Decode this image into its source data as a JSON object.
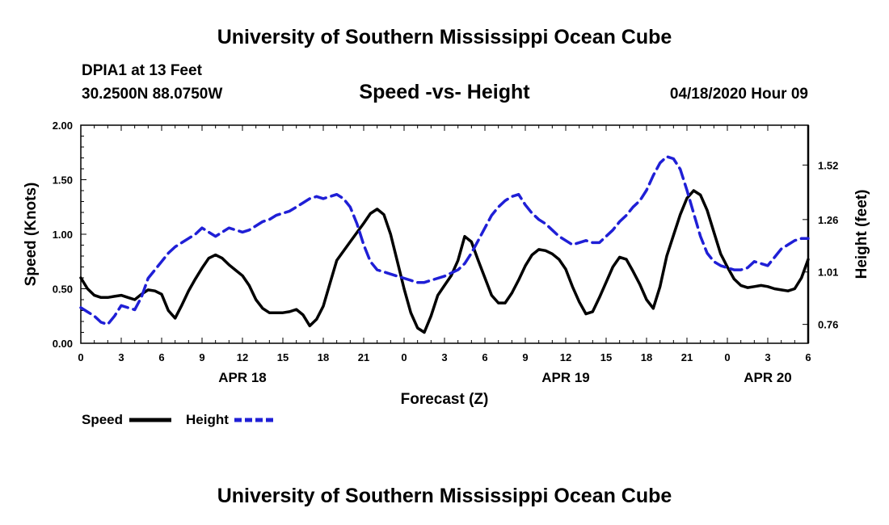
{
  "header": {
    "title": "University of Southern Mississippi Ocean Cube",
    "station": "DPIA1 at 13 Feet",
    "location": "30.2500N 88.0750W",
    "timestamp": "04/18/2020 Hour 09"
  },
  "footer": {
    "title": "University of Southern Mississippi Ocean Cube"
  },
  "chart_data": {
    "type": "line",
    "title": "Speed -vs- Height",
    "xlabel": "Forecast (Z)",
    "ylabel_left": "Speed (Knots)",
    "ylabel_right": "Height (feet)",
    "grid": false,
    "legend_position": "bottom-left",
    "x_range_hours": [
      0,
      54
    ],
    "ylim_left": [
      0,
      2.0
    ],
    "ylim_right": [
      0.67,
      1.71
    ],
    "x_ticks": [
      {
        "h": 0,
        "label": "0"
      },
      {
        "h": 3,
        "label": "3"
      },
      {
        "h": 6,
        "label": "6"
      },
      {
        "h": 9,
        "label": "9"
      },
      {
        "h": 12,
        "label": "12"
      },
      {
        "h": 15,
        "label": "15"
      },
      {
        "h": 18,
        "label": "18"
      },
      {
        "h": 21,
        "label": "21"
      },
      {
        "h": 24,
        "label": "0"
      },
      {
        "h": 27,
        "label": "3"
      },
      {
        "h": 30,
        "label": "6"
      },
      {
        "h": 33,
        "label": "9"
      },
      {
        "h": 36,
        "label": "12"
      },
      {
        "h": 39,
        "label": "15"
      },
      {
        "h": 42,
        "label": "18"
      },
      {
        "h": 45,
        "label": "21"
      },
      {
        "h": 48,
        "label": "0"
      },
      {
        "h": 51,
        "label": "3"
      },
      {
        "h": 54,
        "label": "6"
      }
    ],
    "date_labels": [
      {
        "h": 12,
        "label": "APR 18"
      },
      {
        "h": 36,
        "label": "APR 19"
      },
      {
        "h": 51,
        "label": "APR 20"
      }
    ],
    "y_ticks_left": [
      {
        "v": 0,
        "label": "0.00"
      },
      {
        "v": 0.5,
        "label": "0.50"
      },
      {
        "v": 1.0,
        "label": "1.00"
      },
      {
        "v": 1.5,
        "label": "1.50"
      },
      {
        "v": 2.0,
        "label": "2.00"
      }
    ],
    "y_ticks_right": [
      {
        "v": 0.76,
        "label": "0.76"
      },
      {
        "v": 1.01,
        "label": "1.01"
      },
      {
        "v": 1.26,
        "label": "1.26"
      },
      {
        "v": 1.52,
        "label": "1.52"
      }
    ],
    "series": [
      {
        "name": "Speed",
        "axis": "left",
        "color": "#000000",
        "dashed": false,
        "points": [
          [
            0,
            0.6
          ],
          [
            0.5,
            0.5
          ],
          [
            1,
            0.44
          ],
          [
            1.5,
            0.42
          ],
          [
            2,
            0.42
          ],
          [
            2.5,
            0.43
          ],
          [
            3,
            0.44
          ],
          [
            3.5,
            0.42
          ],
          [
            4,
            0.4
          ],
          [
            4.5,
            0.45
          ],
          [
            5,
            0.49
          ],
          [
            5.5,
            0.48
          ],
          [
            6,
            0.45
          ],
          [
            6.5,
            0.3
          ],
          [
            7,
            0.23
          ],
          [
            7.5,
            0.35
          ],
          [
            8,
            0.48
          ],
          [
            8.5,
            0.59
          ],
          [
            9,
            0.69
          ],
          [
            9.5,
            0.78
          ],
          [
            10,
            0.81
          ],
          [
            10.5,
            0.78
          ],
          [
            11,
            0.72
          ],
          [
            11.5,
            0.67
          ],
          [
            12,
            0.62
          ],
          [
            12.5,
            0.53
          ],
          [
            13,
            0.4
          ],
          [
            13.5,
            0.32
          ],
          [
            14,
            0.28
          ],
          [
            15,
            0.28
          ],
          [
            15.5,
            0.29
          ],
          [
            16,
            0.31
          ],
          [
            16.5,
            0.26
          ],
          [
            17,
            0.16
          ],
          [
            17.5,
            0.22
          ],
          [
            18,
            0.34
          ],
          [
            18.5,
            0.55
          ],
          [
            19,
            0.76
          ],
          [
            20,
            0.93
          ],
          [
            21,
            1.1
          ],
          [
            21.5,
            1.19
          ],
          [
            22,
            1.23
          ],
          [
            22.5,
            1.18
          ],
          [
            23,
            1.0
          ],
          [
            23.5,
            0.75
          ],
          [
            24,
            0.5
          ],
          [
            24.5,
            0.28
          ],
          [
            25,
            0.14
          ],
          [
            25.5,
            0.1
          ],
          [
            26,
            0.25
          ],
          [
            26.5,
            0.44
          ],
          [
            27,
            0.53
          ],
          [
            27.5,
            0.62
          ],
          [
            28,
            0.76
          ],
          [
            28.5,
            0.98
          ],
          [
            29,
            0.93
          ],
          [
            29.5,
            0.76
          ],
          [
            30,
            0.6
          ],
          [
            30.5,
            0.44
          ],
          [
            31,
            0.37
          ],
          [
            31.5,
            0.37
          ],
          [
            32,
            0.46
          ],
          [
            32.5,
            0.58
          ],
          [
            33,
            0.71
          ],
          [
            33.5,
            0.81
          ],
          [
            34,
            0.86
          ],
          [
            34.5,
            0.85
          ],
          [
            35,
            0.82
          ],
          [
            35.5,
            0.77
          ],
          [
            36,
            0.68
          ],
          [
            36.5,
            0.52
          ],
          [
            37,
            0.38
          ],
          [
            37.5,
            0.27
          ],
          [
            38,
            0.29
          ],
          [
            38.5,
            0.42
          ],
          [
            39,
            0.56
          ],
          [
            39.5,
            0.7
          ],
          [
            40,
            0.79
          ],
          [
            40.5,
            0.77
          ],
          [
            41,
            0.66
          ],
          [
            41.5,
            0.54
          ],
          [
            42,
            0.4
          ],
          [
            42.5,
            0.32
          ],
          [
            43,
            0.52
          ],
          [
            43.5,
            0.8
          ],
          [
            44,
            0.99
          ],
          [
            44.5,
            1.18
          ],
          [
            45,
            1.33
          ],
          [
            45.5,
            1.4
          ],
          [
            46,
            1.36
          ],
          [
            46.5,
            1.22
          ],
          [
            47,
            1.02
          ],
          [
            47.5,
            0.82
          ],
          [
            48,
            0.7
          ],
          [
            48.5,
            0.59
          ],
          [
            49,
            0.53
          ],
          [
            49.5,
            0.51
          ],
          [
            50,
            0.52
          ],
          [
            50.5,
            0.53
          ],
          [
            51,
            0.52
          ],
          [
            51.5,
            0.5
          ],
          [
            52,
            0.49
          ],
          [
            52.5,
            0.48
          ],
          [
            53,
            0.5
          ],
          [
            53.5,
            0.6
          ],
          [
            54,
            0.77
          ]
        ]
      },
      {
        "name": "Height",
        "axis": "right",
        "color": "#1f1fd6",
        "dashed": true,
        "points": [
          [
            0,
            0.84
          ],
          [
            0.5,
            0.82
          ],
          [
            1,
            0.8
          ],
          [
            1.5,
            0.77
          ],
          [
            2,
            0.76
          ],
          [
            2.5,
            0.8
          ],
          [
            3,
            0.85
          ],
          [
            3.5,
            0.84
          ],
          [
            4,
            0.83
          ],
          [
            4.5,
            0.89
          ],
          [
            5,
            0.98
          ],
          [
            5.5,
            1.02
          ],
          [
            6,
            1.06
          ],
          [
            6.5,
            1.1
          ],
          [
            7,
            1.13
          ],
          [
            7.5,
            1.15
          ],
          [
            8,
            1.17
          ],
          [
            8.5,
            1.19
          ],
          [
            9,
            1.22
          ],
          [
            9.5,
            1.2
          ],
          [
            10,
            1.18
          ],
          [
            10.5,
            1.2
          ],
          [
            11,
            1.22
          ],
          [
            11.5,
            1.21
          ],
          [
            12,
            1.2
          ],
          [
            12.5,
            1.21
          ],
          [
            13,
            1.23
          ],
          [
            13.5,
            1.25
          ],
          [
            14,
            1.26
          ],
          [
            14.5,
            1.28
          ],
          [
            15,
            1.29
          ],
          [
            15.5,
            1.3
          ],
          [
            16,
            1.32
          ],
          [
            16.5,
            1.34
          ],
          [
            17,
            1.36
          ],
          [
            17.5,
            1.37
          ],
          [
            18,
            1.36
          ],
          [
            18.5,
            1.37
          ],
          [
            19,
            1.38
          ],
          [
            19.5,
            1.36
          ],
          [
            20,
            1.32
          ],
          [
            20.5,
            1.24
          ],
          [
            21,
            1.14
          ],
          [
            21.5,
            1.06
          ],
          [
            22,
            1.02
          ],
          [
            23,
            1.0
          ],
          [
            24,
            0.98
          ],
          [
            25,
            0.96
          ],
          [
            25.5,
            0.96
          ],
          [
            26,
            0.97
          ],
          [
            27,
            0.99
          ],
          [
            28,
            1.02
          ],
          [
            28.5,
            1.05
          ],
          [
            29,
            1.1
          ],
          [
            29.5,
            1.16
          ],
          [
            30,
            1.22
          ],
          [
            30.5,
            1.28
          ],
          [
            31,
            1.32
          ],
          [
            31.5,
            1.35
          ],
          [
            32,
            1.37
          ],
          [
            32.5,
            1.38
          ],
          [
            33,
            1.33
          ],
          [
            33.5,
            1.29
          ],
          [
            34,
            1.26
          ],
          [
            34.5,
            1.24
          ],
          [
            35,
            1.21
          ],
          [
            35.5,
            1.18
          ],
          [
            36,
            1.16
          ],
          [
            36.5,
            1.14
          ],
          [
            37,
            1.15
          ],
          [
            37.5,
            1.16
          ],
          [
            38,
            1.15
          ],
          [
            38.5,
            1.15
          ],
          [
            39,
            1.18
          ],
          [
            39.5,
            1.21
          ],
          [
            40,
            1.25
          ],
          [
            40.5,
            1.28
          ],
          [
            41,
            1.32
          ],
          [
            41.5,
            1.35
          ],
          [
            42,
            1.4
          ],
          [
            42.5,
            1.47
          ],
          [
            43,
            1.53
          ],
          [
            43.5,
            1.56
          ],
          [
            44,
            1.55
          ],
          [
            44.5,
            1.5
          ],
          [
            45,
            1.4
          ],
          [
            45.5,
            1.29
          ],
          [
            46,
            1.18
          ],
          [
            46.5,
            1.1
          ],
          [
            47,
            1.06
          ],
          [
            47.5,
            1.04
          ],
          [
            48,
            1.03
          ],
          [
            48.5,
            1.02
          ],
          [
            49,
            1.02
          ],
          [
            49.5,
            1.03
          ],
          [
            50,
            1.06
          ],
          [
            50.5,
            1.05
          ],
          [
            51,
            1.04
          ],
          [
            51.5,
            1.08
          ],
          [
            52,
            1.12
          ],
          [
            52.5,
            1.14
          ],
          [
            53,
            1.16
          ],
          [
            53.5,
            1.17
          ],
          [
            54,
            1.17
          ]
        ]
      }
    ]
  }
}
